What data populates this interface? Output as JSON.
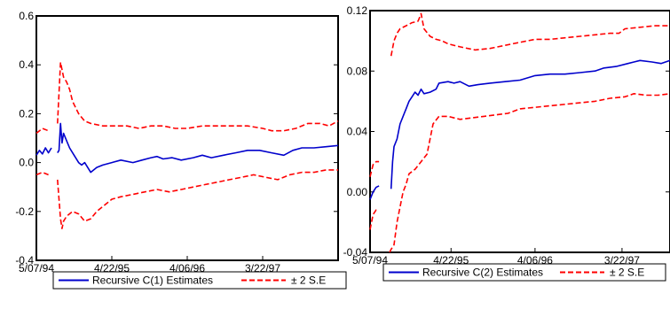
{
  "chart_data": [
    {
      "type": "line",
      "x_ticks": [
        "5/07/94",
        "4/22/95",
        "4/06/96",
        "3/22/97"
      ],
      "x_tick_pos": [
        0.0,
        0.25,
        0.5,
        0.75
      ],
      "ylim": [
        -0.4,
        0.6
      ],
      "y_ticks": [
        -0.4,
        -0.2,
        0.0,
        0.2,
        0.4,
        0.6
      ],
      "y_tick_labels": [
        "-0.4",
        "-0.2",
        "0.0",
        "0.2",
        "0.4",
        "0.6"
      ],
      "grid": false,
      "legend_position": "bottom",
      "series": [
        {
          "name": "Recursive C(1) Estimates",
          "color": "#0000cc",
          "style": "solid",
          "points": [
            [
              0.0,
              0.03
            ],
            [
              0.01,
              0.05
            ],
            [
              0.02,
              0.035
            ],
            [
              0.03,
              0.06
            ],
            [
              0.04,
              0.04
            ],
            [
              0.05,
              0.06
            ],
            [
              0.06,
              null
            ],
            [
              0.07,
              0.04
            ],
            [
              0.075,
              0.05
            ],
            [
              0.08,
              0.16
            ],
            [
              0.085,
              0.08
            ],
            [
              0.09,
              0.12
            ],
            [
              0.1,
              0.09
            ],
            [
              0.11,
              0.06
            ],
            [
              0.12,
              0.04
            ],
            [
              0.13,
              0.02
            ],
            [
              0.14,
              0.0
            ],
            [
              0.15,
              -0.01
            ],
            [
              0.16,
              0.0
            ],
            [
              0.18,
              -0.04
            ],
            [
              0.2,
              -0.02
            ],
            [
              0.22,
              -0.01
            ],
            [
              0.25,
              0.0
            ],
            [
              0.28,
              0.01
            ],
            [
              0.32,
              0.0
            ],
            [
              0.35,
              0.01
            ],
            [
              0.38,
              0.02
            ],
            [
              0.4,
              0.025
            ],
            [
              0.42,
              0.015
            ],
            [
              0.45,
              0.02
            ],
            [
              0.48,
              0.01
            ],
            [
              0.52,
              0.02
            ],
            [
              0.55,
              0.03
            ],
            [
              0.58,
              0.02
            ],
            [
              0.62,
              0.03
            ],
            [
              0.66,
              0.04
            ],
            [
              0.7,
              0.05
            ],
            [
              0.74,
              0.05
            ],
            [
              0.78,
              0.04
            ],
            [
              0.82,
              0.03
            ],
            [
              0.85,
              0.05
            ],
            [
              0.88,
              0.06
            ],
            [
              0.92,
              0.06
            ],
            [
              0.96,
              0.065
            ],
            [
              1.0,
              0.07
            ]
          ]
        },
        {
          "name": "± 2 S.E",
          "color": "#ff0000",
          "style": "dashed",
          "points": [
            [
              0.0,
              0.12
            ],
            [
              0.02,
              0.14
            ],
            [
              0.04,
              0.13
            ],
            [
              0.06,
              null
            ],
            [
              0.07,
              0.16
            ],
            [
              0.08,
              0.41
            ],
            [
              0.09,
              0.35
            ],
            [
              0.1,
              0.33
            ],
            [
              0.11,
              0.3
            ],
            [
              0.12,
              0.25
            ],
            [
              0.14,
              0.2
            ],
            [
              0.16,
              0.17
            ],
            [
              0.18,
              0.16
            ],
            [
              0.22,
              0.15
            ],
            [
              0.26,
              0.15
            ],
            [
              0.3,
              0.15
            ],
            [
              0.34,
              0.14
            ],
            [
              0.38,
              0.15
            ],
            [
              0.42,
              0.15
            ],
            [
              0.46,
              0.14
            ],
            [
              0.5,
              0.14
            ],
            [
              0.55,
              0.15
            ],
            [
              0.6,
              0.15
            ],
            [
              0.65,
              0.15
            ],
            [
              0.7,
              0.15
            ],
            [
              0.75,
              0.14
            ],
            [
              0.78,
              0.13
            ],
            [
              0.82,
              0.13
            ],
            [
              0.86,
              0.14
            ],
            [
              0.9,
              0.16
            ],
            [
              0.94,
              0.16
            ],
            [
              0.97,
              0.15
            ],
            [
              1.0,
              0.17
            ]
          ]
        },
        {
          "name": "",
          "color": "#ff0000",
          "style": "dashed",
          "points": [
            [
              0.0,
              -0.05
            ],
            [
              0.02,
              -0.04
            ],
            [
              0.04,
              -0.05
            ],
            [
              0.06,
              null
            ],
            [
              0.07,
              -0.07
            ],
            [
              0.08,
              -0.23
            ],
            [
              0.085,
              -0.27
            ],
            [
              0.09,
              -0.24
            ],
            [
              0.1,
              -0.22
            ],
            [
              0.12,
              -0.2
            ],
            [
              0.14,
              -0.21
            ],
            [
              0.16,
              -0.24
            ],
            [
              0.18,
              -0.23
            ],
            [
              0.2,
              -0.2
            ],
            [
              0.22,
              -0.18
            ],
            [
              0.25,
              -0.15
            ],
            [
              0.28,
              -0.14
            ],
            [
              0.32,
              -0.13
            ],
            [
              0.36,
              -0.12
            ],
            [
              0.4,
              -0.11
            ],
            [
              0.44,
              -0.12
            ],
            [
              0.48,
              -0.11
            ],
            [
              0.52,
              -0.1
            ],
            [
              0.56,
              -0.09
            ],
            [
              0.6,
              -0.08
            ],
            [
              0.64,
              -0.07
            ],
            [
              0.68,
              -0.06
            ],
            [
              0.72,
              -0.05
            ],
            [
              0.76,
              -0.06
            ],
            [
              0.8,
              -0.07
            ],
            [
              0.84,
              -0.05
            ],
            [
              0.88,
              -0.04
            ],
            [
              0.92,
              -0.04
            ],
            [
              0.96,
              -0.03
            ],
            [
              1.0,
              -0.03
            ]
          ]
        }
      ]
    },
    {
      "type": "line",
      "x_ticks": [
        "5/07/94",
        "4/22/95",
        "4/06/96",
        "3/22/97"
      ],
      "x_tick_pos": [
        0.0,
        0.27,
        0.55,
        0.84
      ],
      "ylim": [
        -0.04,
        0.12
      ],
      "y_ticks": [
        -0.04,
        0.0,
        0.04,
        0.08,
        0.12
      ],
      "y_tick_labels": [
        "-0.04",
        "0.00",
        "0.04",
        "0.08",
        "0.12"
      ],
      "grid": false,
      "legend_position": "bottom",
      "series": [
        {
          "name": "Recursive C(2) Estimates",
          "color": "#0000cc",
          "style": "solid",
          "points": [
            [
              0.0,
              -0.005
            ],
            [
              0.01,
              0.0
            ],
            [
              0.02,
              0.003
            ],
            [
              0.03,
              0.004
            ],
            [
              0.04,
              null
            ],
            [
              0.07,
              0.002
            ],
            [
              0.075,
              0.02
            ],
            [
              0.08,
              0.03
            ],
            [
              0.09,
              0.035
            ],
            [
              0.1,
              0.045
            ],
            [
              0.11,
              0.05
            ],
            [
              0.12,
              0.055
            ],
            [
              0.13,
              0.06
            ],
            [
              0.14,
              0.063
            ],
            [
              0.15,
              0.066
            ],
            [
              0.16,
              0.064
            ],
            [
              0.17,
              0.068
            ],
            [
              0.18,
              0.065
            ],
            [
              0.2,
              0.066
            ],
            [
              0.22,
              0.068
            ],
            [
              0.23,
              0.072
            ],
            [
              0.26,
              0.073
            ],
            [
              0.28,
              0.072
            ],
            [
              0.3,
              0.073
            ],
            [
              0.33,
              0.07
            ],
            [
              0.36,
              0.071
            ],
            [
              0.4,
              0.072
            ],
            [
              0.45,
              0.073
            ],
            [
              0.5,
              0.074
            ],
            [
              0.55,
              0.077
            ],
            [
              0.6,
              0.078
            ],
            [
              0.65,
              0.078
            ],
            [
              0.7,
              0.079
            ],
            [
              0.75,
              0.08
            ],
            [
              0.78,
              0.082
            ],
            [
              0.82,
              0.083
            ],
            [
              0.86,
              0.085
            ],
            [
              0.88,
              0.086
            ],
            [
              0.9,
              0.087
            ],
            [
              0.94,
              0.086
            ],
            [
              0.97,
              0.085
            ],
            [
              1.0,
              0.087
            ]
          ]
        },
        {
          "name": "± 2 S.E",
          "color": "#ff0000",
          "style": "dashed",
          "points": [
            [
              0.0,
              0.01
            ],
            [
              0.01,
              0.018
            ],
            [
              0.02,
              0.02
            ],
            [
              0.03,
              0.02
            ],
            [
              0.04,
              null
            ],
            [
              0.07,
              0.09
            ],
            [
              0.08,
              0.1
            ],
            [
              0.09,
              0.105
            ],
            [
              0.1,
              0.108
            ],
            [
              0.12,
              0.11
            ],
            [
              0.14,
              0.112
            ],
            [
              0.16,
              0.113
            ],
            [
              0.17,
              0.118
            ],
            [
              0.18,
              0.108
            ],
            [
              0.2,
              0.103
            ],
            [
              0.22,
              0.101
            ],
            [
              0.24,
              0.1
            ],
            [
              0.26,
              0.098
            ],
            [
              0.3,
              0.096
            ],
            [
              0.35,
              0.094
            ],
            [
              0.4,
              0.095
            ],
            [
              0.45,
              0.097
            ],
            [
              0.5,
              0.099
            ],
            [
              0.55,
              0.101
            ],
            [
              0.6,
              0.101
            ],
            [
              0.65,
              0.102
            ],
            [
              0.7,
              0.103
            ],
            [
              0.75,
              0.104
            ],
            [
              0.8,
              0.105
            ],
            [
              0.83,
              0.105
            ],
            [
              0.85,
              0.108
            ],
            [
              0.9,
              0.109
            ],
            [
              0.95,
              0.11
            ],
            [
              1.0,
              0.11
            ]
          ]
        },
        {
          "name": "",
          "color": "#ff0000",
          "style": "dashed",
          "points": [
            [
              0.0,
              -0.025
            ],
            [
              0.01,
              -0.015
            ],
            [
              0.02,
              -0.012
            ],
            [
              0.03,
              -0.012
            ],
            [
              0.04,
              null
            ],
            [
              0.065,
              -0.04
            ],
            [
              0.07,
              -0.038
            ],
            [
              0.08,
              -0.035
            ],
            [
              0.09,
              -0.02
            ],
            [
              0.1,
              -0.01
            ],
            [
              0.11,
              0.0
            ],
            [
              0.12,
              0.005
            ],
            [
              0.13,
              0.012
            ],
            [
              0.15,
              0.015
            ],
            [
              0.17,
              0.02
            ],
            [
              0.19,
              0.025
            ],
            [
              0.21,
              0.045
            ],
            [
              0.23,
              0.05
            ],
            [
              0.26,
              0.05
            ],
            [
              0.3,
              0.048
            ],
            [
              0.34,
              0.049
            ],
            [
              0.38,
              0.05
            ],
            [
              0.42,
              0.051
            ],
            [
              0.46,
              0.052
            ],
            [
              0.5,
              0.055
            ],
            [
              0.55,
              0.056
            ],
            [
              0.6,
              0.057
            ],
            [
              0.65,
              0.058
            ],
            [
              0.7,
              0.059
            ],
            [
              0.75,
              0.06
            ],
            [
              0.8,
              0.062
            ],
            [
              0.85,
              0.063
            ],
            [
              0.88,
              0.065
            ],
            [
              0.92,
              0.064
            ],
            [
              0.96,
              0.064
            ],
            [
              1.0,
              0.065
            ]
          ]
        }
      ]
    }
  ]
}
